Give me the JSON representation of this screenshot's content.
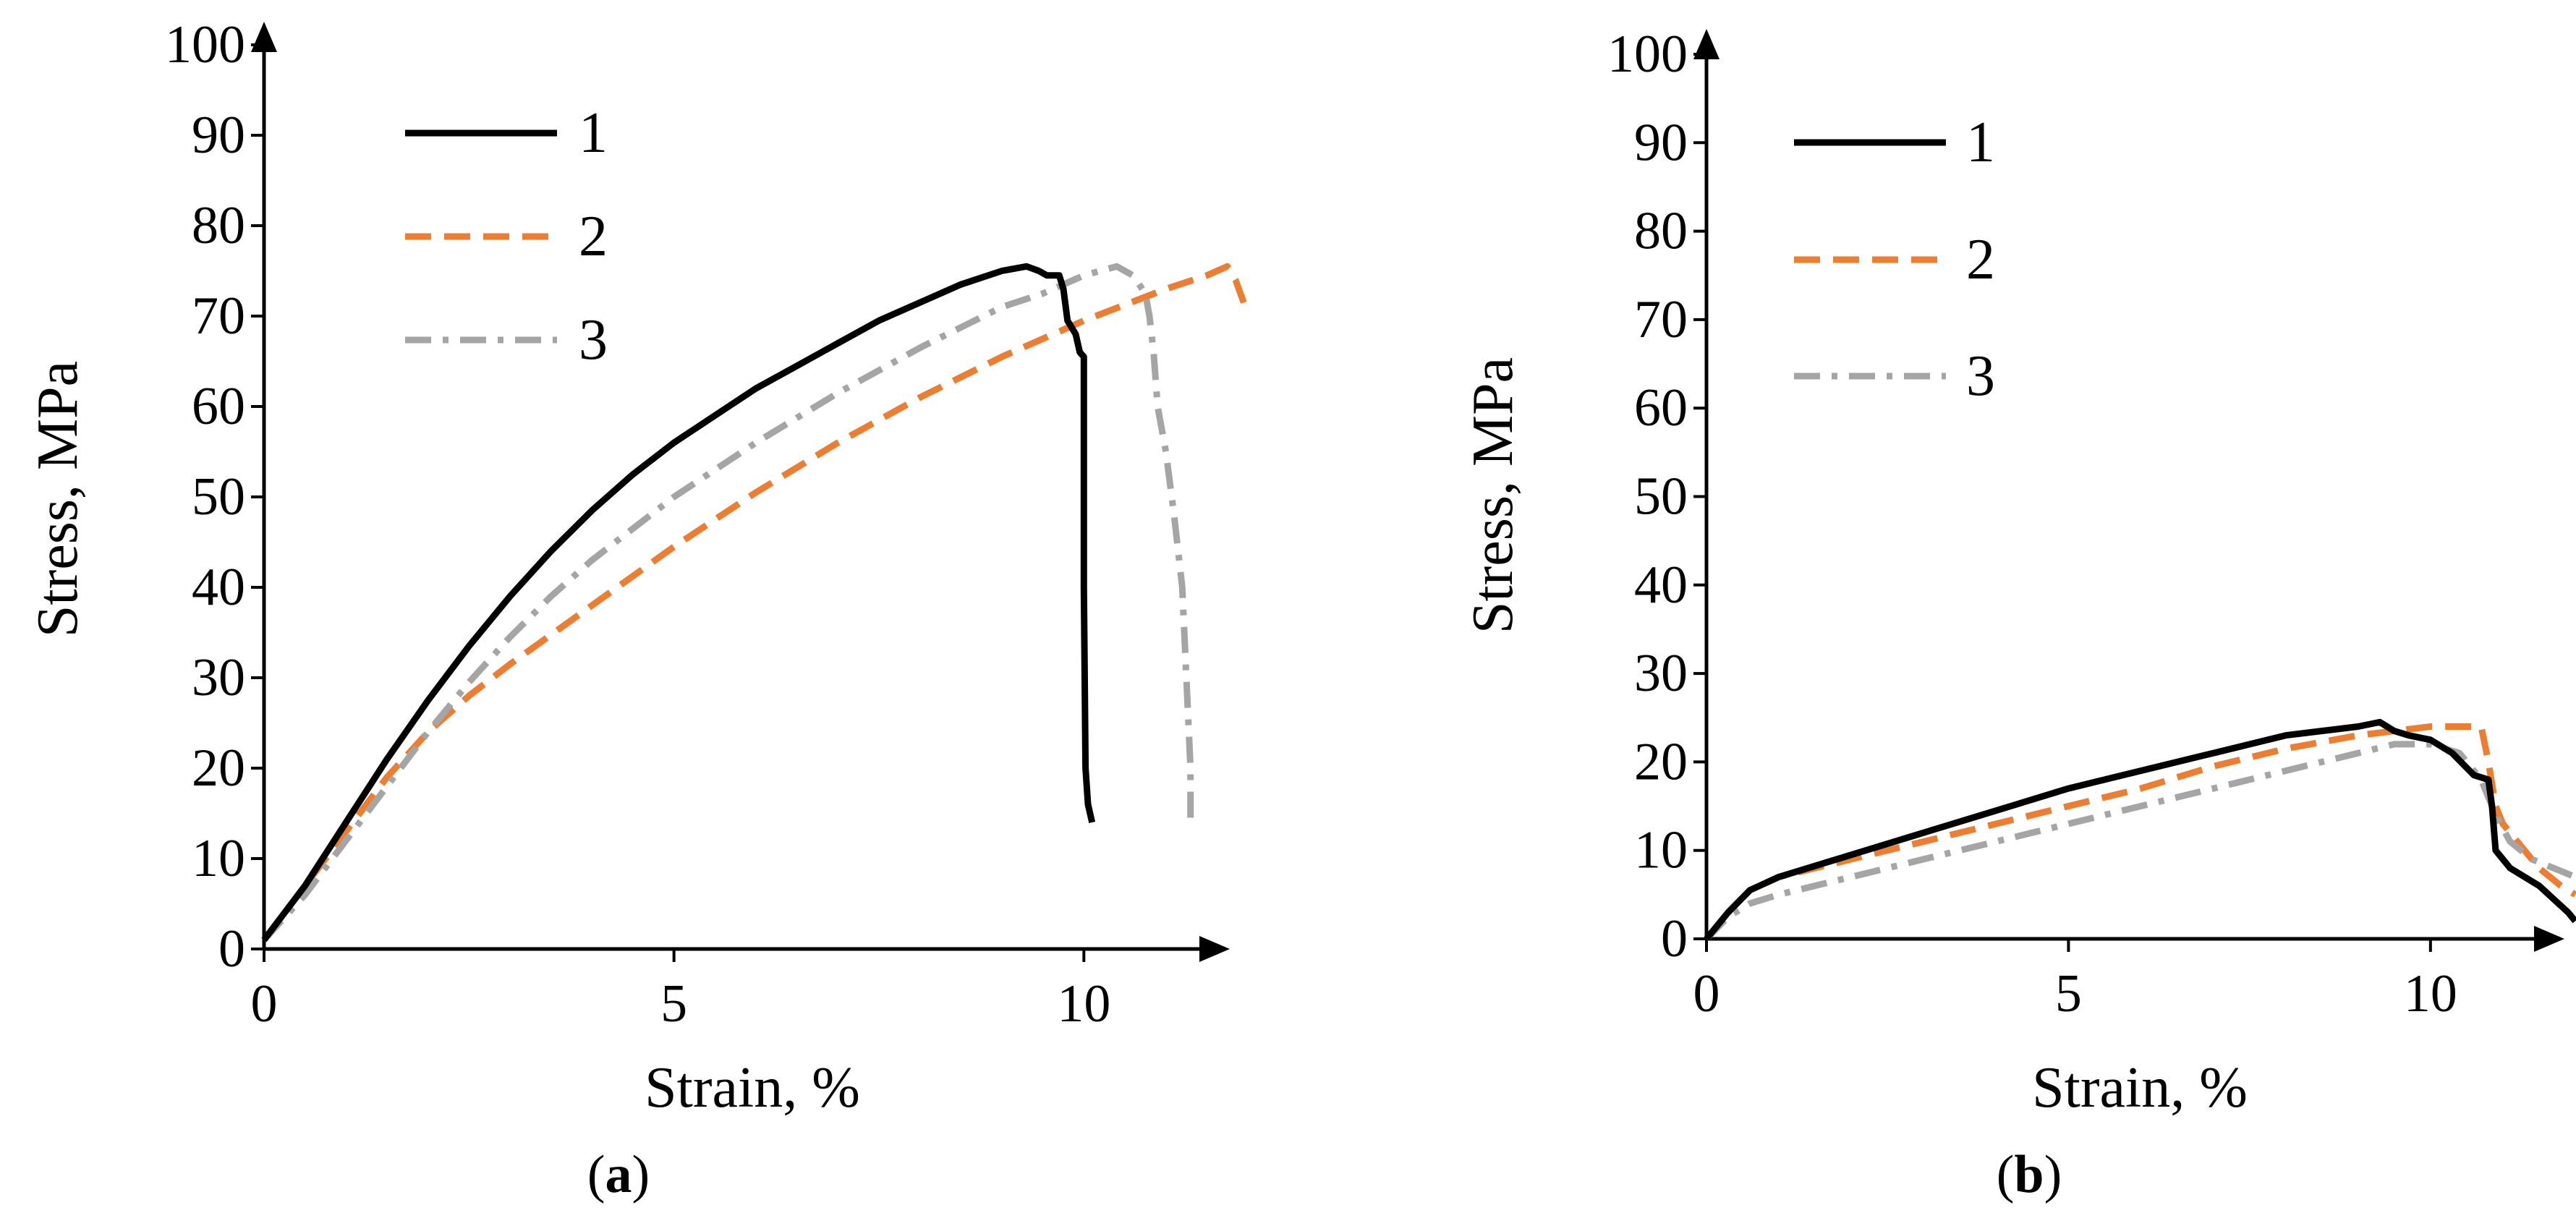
{
  "chart_data": [
    {
      "id": "a",
      "type": "line",
      "caption_letter": "a",
      "caption_open": "(",
      "caption_close": ")",
      "xlabel": "Strain, %",
      "ylabel": "Stress, MPa",
      "xlim": [
        0,
        12
      ],
      "ylim": [
        0,
        100
      ],
      "xticks": [
        0,
        5,
        10
      ],
      "yticks": [
        0,
        10,
        20,
        30,
        40,
        50,
        60,
        70,
        80,
        90,
        100
      ],
      "legend_position": "top-left",
      "series": [
        {
          "name": "1",
          "color": "#000000",
          "dash": "solid",
          "x": [
            0,
            0.5,
            1,
            1.5,
            2,
            2.5,
            3,
            3.5,
            4,
            4.5,
            5,
            5.5,
            6,
            6.5,
            7,
            7.5,
            8,
            8.5,
            9,
            9.3,
            9.45,
            9.55,
            9.7,
            9.75,
            9.8,
            9.9,
            9.95,
            10.0,
            10.0,
            10.02,
            10.05,
            10.1
          ],
          "y": [
            1,
            7,
            14,
            21,
            27.5,
            33.5,
            39,
            44,
            48.5,
            52.5,
            56,
            59,
            62,
            64.5,
            67,
            69.5,
            71.5,
            73.5,
            75,
            75.5,
            75,
            74.5,
            74.5,
            73,
            69.5,
            68,
            66,
            65.5,
            40,
            20,
            16,
            14
          ]
        },
        {
          "name": "2",
          "color": "#ED7D31",
          "dash": "dash",
          "x": [
            0,
            0.5,
            1,
            1.5,
            2,
            2.5,
            3,
            4,
            5,
            6,
            7,
            8,
            9,
            10,
            11,
            11.5,
            11.75,
            11.85,
            11.95
          ],
          "y": [
            1,
            7,
            13,
            19,
            24,
            28,
            31.5,
            38,
            44.5,
            50.5,
            56,
            61,
            65.5,
            69.5,
            73,
            74.5,
            75.5,
            74,
            71.5
          ]
        },
        {
          "name": "3",
          "color": "#A5A5A5",
          "dash": "dashdot",
          "x": [
            0,
            0.5,
            1,
            1.5,
            2,
            2.5,
            3,
            3.5,
            4,
            5,
            6,
            7,
            8,
            9,
            9.5,
            10,
            10.4,
            10.6,
            10.75,
            10.8,
            10.85,
            10.9,
            11.0,
            11.1,
            11.2,
            11.25,
            11.3,
            11.3
          ],
          "y": [
            1,
            6,
            12,
            18,
            24,
            29.5,
            34.5,
            39,
            43,
            50,
            56,
            61.5,
            66.5,
            71,
            72.5,
            74.5,
            75.5,
            74.5,
            72.5,
            70,
            66,
            60,
            55,
            48,
            40,
            30,
            20,
            14
          ]
        }
      ]
    },
    {
      "id": "b",
      "type": "line",
      "caption_letter": "b",
      "caption_open": "(",
      "caption_close": ")",
      "xlabel": "Strain, %",
      "ylabel": "Stress, MPa",
      "xlim": [
        0,
        12
      ],
      "ylim": [
        0,
        100
      ],
      "xticks": [
        0,
        5,
        10
      ],
      "yticks": [
        0,
        10,
        20,
        30,
        40,
        50,
        60,
        70,
        80,
        90,
        100
      ],
      "legend_position": "top-left",
      "series": [
        {
          "name": "1",
          "color": "#000000",
          "dash": "solid",
          "x": [
            0,
            0.3,
            0.6,
            1,
            2,
            3,
            4,
            5,
            6,
            7,
            8,
            9,
            9.3,
            9.5,
            9.7,
            10,
            10.3,
            10.6,
            10.8,
            10.85,
            10.9,
            11.0,
            11.1,
            11.3,
            11.5,
            11.7,
            11.9,
            12
          ],
          "y": [
            0,
            3,
            5.5,
            7,
            9.5,
            12,
            14.5,
            17,
            19,
            21,
            23,
            24,
            24.5,
            23.5,
            23,
            22.5,
            21,
            18.5,
            18,
            15,
            10,
            9,
            8,
            7,
            6,
            4.5,
            3,
            2
          ]
        },
        {
          "name": "2",
          "color": "#ED7D31",
          "dash": "dash",
          "x": [
            0,
            0.3,
            0.6,
            1,
            2,
            3,
            4,
            5,
            6,
            7,
            8,
            9,
            10,
            10.5,
            10.7,
            10.8,
            10.9,
            11.0,
            11.2,
            11.5,
            11.8,
            12
          ],
          "y": [
            0,
            3,
            5.5,
            7,
            9,
            11,
            13,
            15,
            17,
            19.5,
            21.5,
            23,
            24,
            24,
            24,
            20,
            15,
            13,
            11,
            8,
            6,
            5
          ]
        },
        {
          "name": "3",
          "color": "#A5A5A5",
          "dash": "dashdot",
          "x": [
            0,
            0.3,
            0.6,
            1,
            2,
            3,
            4,
            5,
            6,
            7,
            8,
            9,
            9.5,
            10,
            10.4,
            10.7,
            10.9,
            11.1,
            11.4,
            11.7,
            12
          ],
          "y": [
            0,
            2.5,
            4,
            5,
            7,
            9,
            11,
            13,
            15,
            17,
            19,
            21,
            22,
            22,
            21,
            18,
            14,
            11,
            9,
            8,
            7
          ]
        }
      ]
    }
  ]
}
